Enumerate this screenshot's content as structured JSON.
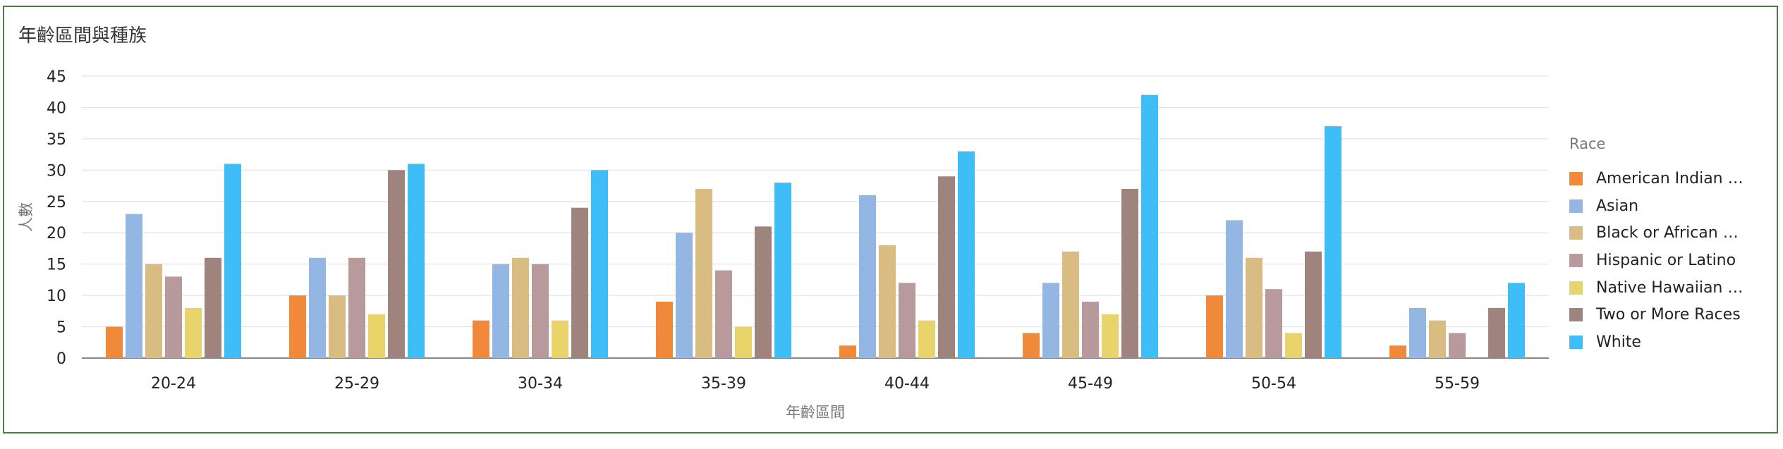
{
  "chart_data": {
    "type": "bar",
    "title": "年齡區間與種族",
    "xlabel": "年齡區間",
    "ylabel": "人數",
    "ylim": [
      0,
      45
    ],
    "yticks": [
      0,
      5,
      10,
      15,
      20,
      25,
      30,
      35,
      40,
      45
    ],
    "grid": true,
    "legend_title": "Race",
    "legend_position": "right",
    "categories": [
      "20-24",
      "25-29",
      "30-34",
      "35-39",
      "40-44",
      "45-49",
      "50-54",
      "55-59"
    ],
    "series": [
      {
        "name": "American Indian or...",
        "color": "#f08a3a",
        "values": [
          5,
          10,
          6,
          9,
          2,
          4,
          10,
          2
        ]
      },
      {
        "name": "Asian",
        "color": "#93b6e2",
        "values": [
          23,
          16,
          15,
          20,
          26,
          12,
          22,
          8
        ]
      },
      {
        "name": "Black or African A...",
        "color": "#d8bc82",
        "values": [
          15,
          10,
          16,
          27,
          18,
          17,
          16,
          6
        ]
      },
      {
        "name": "Hispanic or Latino",
        "color": "#b89a9c",
        "values": [
          13,
          16,
          15,
          14,
          12,
          9,
          11,
          4
        ]
      },
      {
        "name": "Native Hawaiian or ...",
        "color": "#e8d46a",
        "values": [
          8,
          7,
          6,
          5,
          6,
          7,
          4,
          0
        ]
      },
      {
        "name": "Two or More Races",
        "color": "#9e847c",
        "values": [
          16,
          30,
          24,
          21,
          29,
          27,
          17,
          8
        ]
      },
      {
        "name": "White",
        "color": "#3fbdf6",
        "values": [
          31,
          31,
          30,
          28,
          33,
          42,
          37,
          12
        ]
      }
    ]
  }
}
